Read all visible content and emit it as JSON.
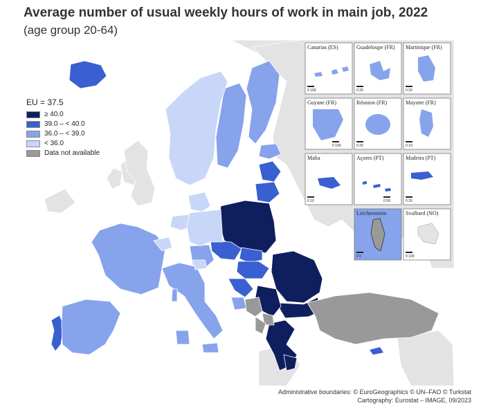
{
  "title": "Average number of usual weekly hours of work in main job, 2022",
  "subtitle": "(age group 20-64)",
  "legend": {
    "heading": "EU = 37.5",
    "classes": [
      {
        "label": "≥ 40.0",
        "color": "#0f1f5e"
      },
      {
        "label": "39.0 – < 40.0",
        "color": "#3a5fd0"
      },
      {
        "label": "36.0 – < 39.0",
        "color": "#86a3ec"
      },
      {
        "label": "< 36.0",
        "color": "#c8d7f7"
      },
      {
        "label": "Data not available",
        "color": "#999999"
      }
    ]
  },
  "insets": [
    {
      "label": "Canarias (ES)",
      "scale": "0 100"
    },
    {
      "label": "Guadeloupe (FR)",
      "scale": "0 20"
    },
    {
      "label": "Martinique (FR)",
      "scale": "0 20"
    },
    {
      "label": "Guyane (FR)",
      "scale": "0 100"
    },
    {
      "label": "Réunion (FR)",
      "scale": "0 20"
    },
    {
      "label": "Mayotte (FR)",
      "scale": "0 10"
    },
    {
      "label": "Malta",
      "scale": "0 10"
    },
    {
      "label": "Açores (PT)",
      "scale": "0 50"
    },
    {
      "label": "Madeira (PT)",
      "scale": "0 20"
    },
    {
      "label": "Liechtenstein",
      "scale": "0 5"
    },
    {
      "label": "Svalbard (NO)",
      "scale": "0 100"
    }
  ],
  "credits": {
    "line1": "Administrative boundaries: © EuroGeographics © UN–FAO © Turkstat",
    "line2": "Cartography: Eurostat – IMAGE, 09/2023"
  }
}
